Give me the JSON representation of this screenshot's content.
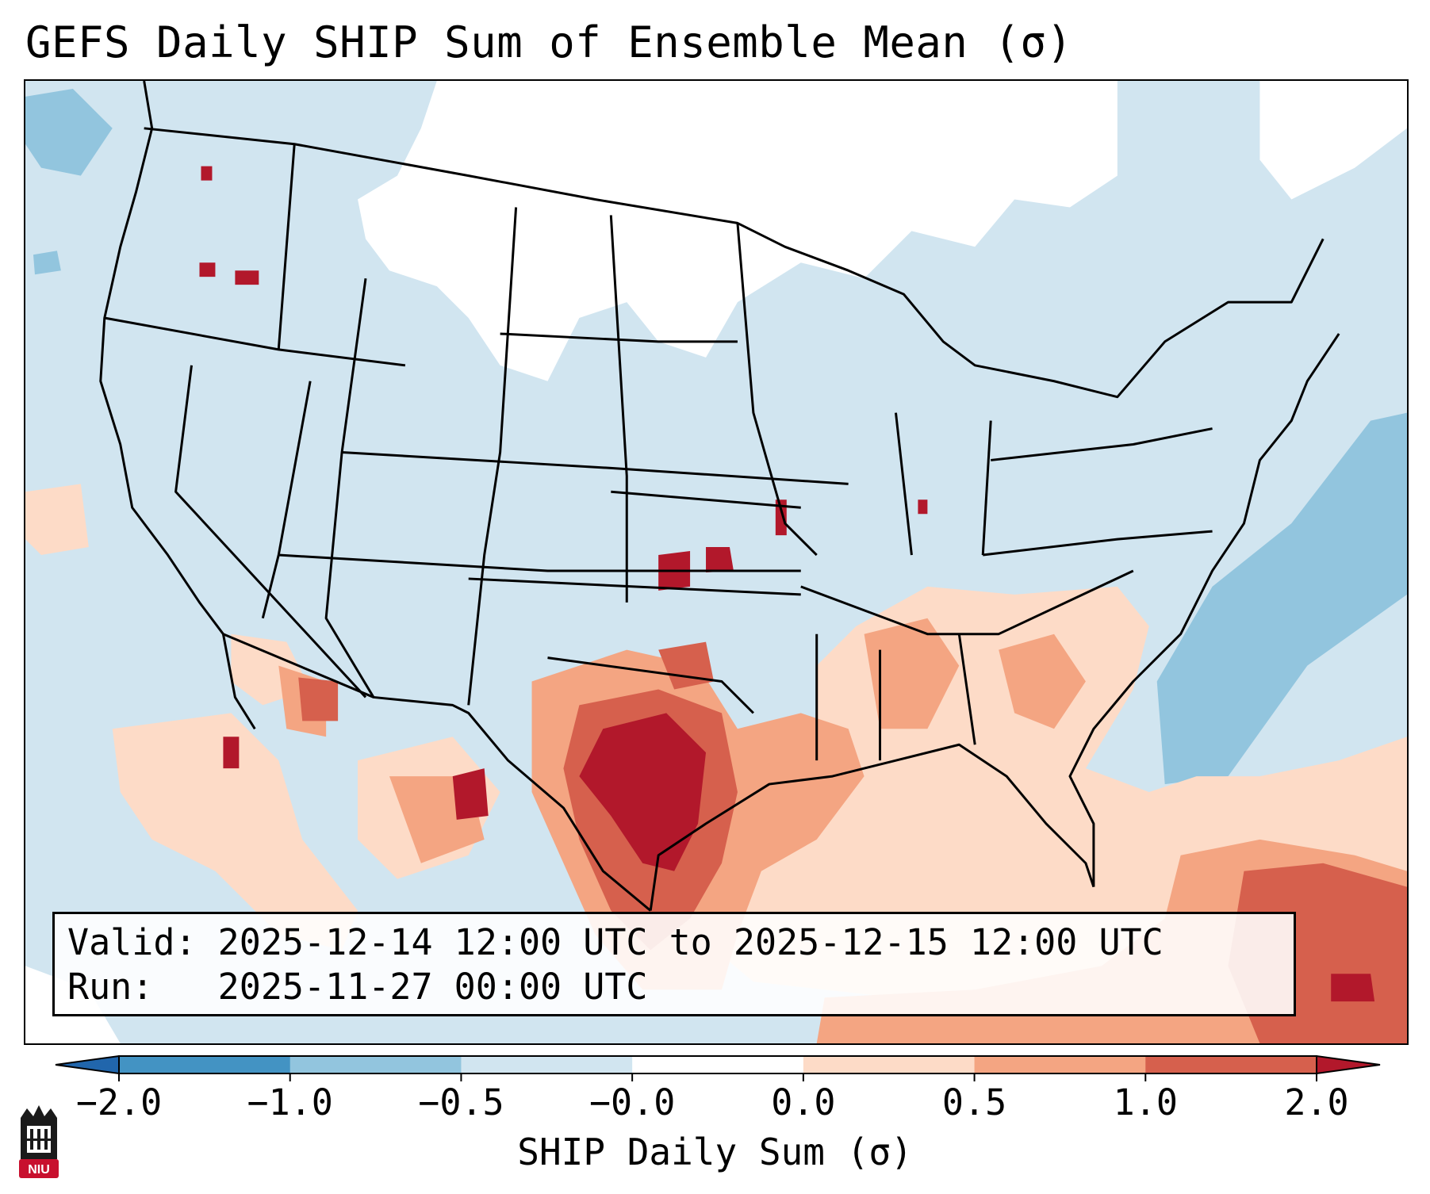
{
  "title": "GEFS Daily SHIP Sum of Ensemble Mean (σ)",
  "info": {
    "valid_label": "Valid:",
    "valid_text": "2025-12-14 12:00 UTC to 2025-12-15 12:00 UTC",
    "run_label": "Run:",
    "run_text": "2025-11-27 00:00 UTC"
  },
  "colorbar": {
    "label": "SHIP Daily Sum (σ)",
    "ticks": [
      "−2.0",
      "−1.0",
      "−0.5",
      "−0.0",
      "0.0",
      "0.5",
      "1.0",
      "2.0"
    ],
    "bins": [
      {
        "range": "< -2.0",
        "color": "#2166ac"
      },
      {
        "range": "-2.0 to -1.0",
        "color": "#4393c3"
      },
      {
        "range": "-1.0 to -0.5",
        "color": "#92c5de"
      },
      {
        "range": "-0.5 to -0.0",
        "color": "#d1e5f0"
      },
      {
        "range": "-0.0 to 0.0",
        "color": "#ffffff"
      },
      {
        "range": "0.0 to 0.5",
        "color": "#fddbc7"
      },
      {
        "range": "0.5 to 1.0",
        "color": "#f4a582"
      },
      {
        "range": "1.0 to 2.0",
        "color": "#d6604d"
      },
      {
        "range": "> 2.0",
        "color": "#b2182b"
      }
    ]
  },
  "logo": {
    "text": "NIU",
    "icon": "niu-university-logo"
  }
}
